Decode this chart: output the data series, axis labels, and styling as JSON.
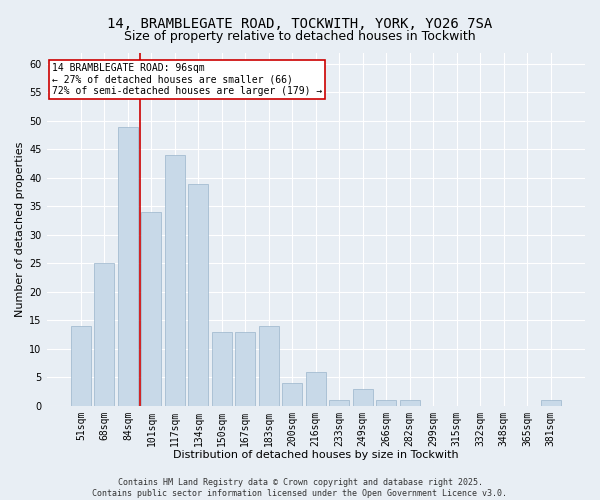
{
  "title": "14, BRAMBLEGATE ROAD, TOCKWITH, YORK, YO26 7SA",
  "subtitle": "Size of property relative to detached houses in Tockwith",
  "xlabel": "Distribution of detached houses by size in Tockwith",
  "ylabel": "Number of detached properties",
  "categories": [
    "51sqm",
    "68sqm",
    "84sqm",
    "101sqm",
    "117sqm",
    "134sqm",
    "150sqm",
    "167sqm",
    "183sqm",
    "200sqm",
    "216sqm",
    "233sqm",
    "249sqm",
    "266sqm",
    "282sqm",
    "299sqm",
    "315sqm",
    "332sqm",
    "348sqm",
    "365sqm",
    "381sqm"
  ],
  "values": [
    14,
    25,
    49,
    34,
    44,
    39,
    13,
    13,
    14,
    4,
    6,
    1,
    3,
    1,
    1,
    0,
    0,
    0,
    0,
    0,
    1
  ],
  "bar_color": "#c8d9e8",
  "bar_edge_color": "#9ab5cb",
  "vline_x_index": 2.5,
  "vline_color": "#cc0000",
  "annotation_text": "14 BRAMBLEGATE ROAD: 96sqm\n← 27% of detached houses are smaller (66)\n72% of semi-detached houses are larger (179) →",
  "annotation_box_facecolor": "#ffffff",
  "annotation_box_edgecolor": "#cc0000",
  "ylim": [
    0,
    62
  ],
  "yticks": [
    0,
    5,
    10,
    15,
    20,
    25,
    30,
    35,
    40,
    45,
    50,
    55,
    60
  ],
  "background_color": "#e8eef4",
  "grid_color": "#ffffff",
  "title_fontsize": 10,
  "subtitle_fontsize": 9,
  "axis_label_fontsize": 8,
  "tick_fontsize": 7,
  "annotation_fontsize": 7,
  "footnote_fontsize": 6,
  "footnote": "Contains HM Land Registry data © Crown copyright and database right 2025.\nContains public sector information licensed under the Open Government Licence v3.0."
}
